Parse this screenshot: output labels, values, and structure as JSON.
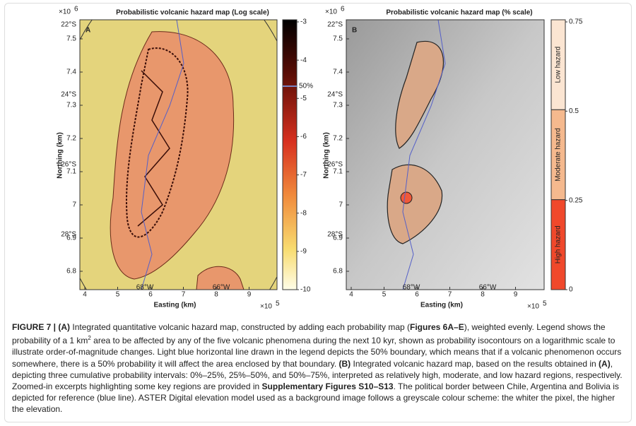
{
  "panels": [
    {
      "letter": "A",
      "title": "Probabilistic volcanic hazard map (Log scale)",
      "y_multiplier": {
        "base": "×10",
        "exp": "6"
      },
      "x_multiplier": {
        "base": "×10",
        "exp": "5"
      },
      "ylabel": "Northing (km)",
      "xlabel": "Easting (km)",
      "yticks": [
        "7.5",
        "7.4",
        "7.3",
        "7.2",
        "7.1",
        "7",
        "6.9",
        "6.8"
      ],
      "xticks": [
        "4",
        "5",
        "6",
        "7",
        "8",
        "9"
      ],
      "lat_labels": [
        "22°S",
        "24°S",
        "26°S",
        "28°S"
      ],
      "lon_labels": [
        "68°W",
        "66°W"
      ],
      "colorbar": {
        "ticks": [
          "-3",
          "-4",
          "-5",
          "-6",
          "-7",
          "-8",
          "-9",
          "-10"
        ],
        "marker": "50%"
      }
    },
    {
      "letter": "B",
      "title": "Probabilistic volcanic hazard map (% scale)",
      "y_multiplier": {
        "base": "×10",
        "exp": "6"
      },
      "x_multiplier": {
        "base": "×10",
        "exp": "5"
      },
      "ylabel": "Northing (km)",
      "xlabel": "Easting (km)",
      "yticks": [
        "7.5",
        "7.4",
        "7.3",
        "7.2",
        "7.1",
        "7",
        "6.9",
        "6.8"
      ],
      "xticks": [
        "4",
        "5",
        "6",
        "7",
        "8",
        "9"
      ],
      "lat_labels": [
        "22°S",
        "24°S",
        "26°S",
        "28°S"
      ],
      "lon_labels": [
        "68°W",
        "66°W"
      ],
      "colorbar": {
        "ticks": [
          "0.75",
          "0.5",
          "0.25",
          "0"
        ],
        "bands": [
          "Low hazard",
          "Moderate hazard",
          "High hazard"
        ]
      }
    }
  ],
  "caption": [
    {
      "text": "FIGURE 7 | ",
      "bold": true
    },
    {
      "text": "(A)",
      "bold": true
    },
    {
      "text": " Integrated quantitative volcanic hazard map, constructed by adding each probability map ("
    },
    {
      "text": "Figures 6A–E",
      "bold": true
    },
    {
      "text": "), weighted evenly. Legend shows the probability of a 1 km"
    },
    {
      "text": "2",
      "sup": true
    },
    {
      "text": " area to be affected by any of the five volcanic phenomena during the next 10 kyr, shown as probability isocontours on a logarithmic scale to illustrate order-of-magnitude changes. Light blue horizontal line drawn in the legend depicts the 50% boundary, which means that if a volcanic phenomenon occurs somewhere, there is a 50% probability it will affect the area enclosed by that boundary. "
    },
    {
      "text": "(B)",
      "bold": true
    },
    {
      "text": " Integrated volcanic hazard map, based on the results obtained in "
    },
    {
      "text": "(A)",
      "bold": true
    },
    {
      "text": ", depicting three cumulative probability intervals: 0%–25%, 25%–50%, and 50%–75%, interpreted as relatively high, moderate, and low hazard regions, respectively. Zoomed-in excerpts highlighting some key regions are provided in "
    },
    {
      "text": "Supplementary Figures S10–S13",
      "bold": true
    },
    {
      "text": ". The political border between Chile, Argentina and Bolivia is depicted for reference (blue line). ASTER Digital elevation model used as a background image follows a greyscale colour scheme: the whiter the pixel, the higher the elevation."
    }
  ]
}
